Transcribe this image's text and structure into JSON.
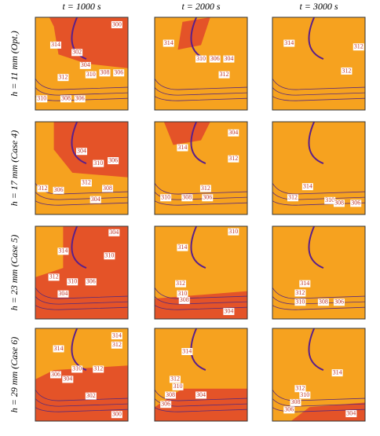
{
  "columns": [
    "t = 1000 s",
    "t = 2000 s",
    "t = 3000 s"
  ],
  "rows": [
    "h = 11 mm (Opt.)",
    "h = 17 mm (Case 4)",
    "h = 23 mm (Case 5)",
    "h = 29 mm (Case 6)"
  ],
  "panels": [
    [
      {
        "labels": [
          "300",
          "314",
          "302",
          "304",
          "310",
          "308",
          "306",
          "312",
          "310",
          "308",
          "306"
        ]
      },
      {
        "labels": [
          "314",
          "310",
          "306",
          "304",
          "312"
        ]
      },
      {
        "labels": [
          "314",
          "312",
          "312"
        ]
      }
    ],
    [
      {
        "labels": [
          "304",
          "310",
          "306",
          "312",
          "306",
          "312",
          "308",
          "304"
        ]
      },
      {
        "labels": [
          "304",
          "314",
          "312",
          "312",
          "310",
          "308",
          "306"
        ]
      },
      {
        "labels": [
          "314",
          "312",
          "310",
          "308",
          "306"
        ]
      }
    ],
    [
      {
        "labels": [
          "304",
          "314",
          "310",
          "312",
          "310",
          "306",
          "304"
        ]
      },
      {
        "labels": [
          "310",
          "314",
          "312",
          "310",
          "308",
          "304"
        ]
      },
      {
        "labels": [
          "314",
          "312",
          "310",
          "308",
          "306"
        ]
      }
    ],
    [
      {
        "labels": [
          "314",
          "312",
          "314",
          "306",
          "310",
          "312",
          "304",
          "302",
          "300"
        ]
      },
      {
        "labels": [
          "314",
          "312",
          "310",
          "308",
          "306",
          "304"
        ]
      },
      {
        "labels": [
          "314",
          "312",
          "310",
          "308",
          "306",
          "304"
        ]
      }
    ]
  ]
}
